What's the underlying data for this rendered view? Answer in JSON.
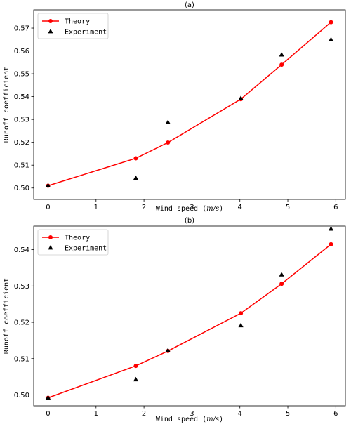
{
  "chart_data": [
    {
      "type": "line",
      "title": "(a)",
      "xlabel": "Wind speed (m/s)",
      "ylabel": "Runoff coefficient",
      "xlim": [
        -0.3,
        6.2
      ],
      "ylim": [
        0.495,
        0.578
      ],
      "xticks": [
        0,
        1,
        2,
        3,
        4,
        5,
        6
      ],
      "yticks": [
        0.5,
        0.51,
        0.52,
        0.53,
        0.54,
        0.55,
        0.56,
        0.57
      ],
      "ytick_labels": [
        "0.50",
        "0.51",
        "0.52",
        "0.53",
        "0.54",
        "0.55",
        "0.56",
        "0.57"
      ],
      "grid": false,
      "legend_position": "top-left",
      "series": [
        {
          "name": "Theory",
          "style": "line-circle",
          "color": "#ff0000",
          "x": [
            0,
            1.83,
            2.5,
            4.02,
            4.87,
            5.9
          ],
          "y": [
            0.501,
            0.513,
            0.5199,
            0.5389,
            0.554,
            0.5726
          ]
        },
        {
          "name": "Experiment",
          "style": "triangle",
          "color": "#000000",
          "x": [
            0,
            1.83,
            2.5,
            4.02,
            4.87,
            5.9
          ],
          "y": [
            0.501,
            0.5043,
            0.5287,
            0.5392,
            0.5583,
            0.5649
          ]
        }
      ]
    },
    {
      "type": "line",
      "title": "(b)",
      "xlabel": "Wind speed (m/s)",
      "ylabel": "Runoff coefficient",
      "xlim": [
        -0.3,
        6.2
      ],
      "ylim": [
        0.497,
        0.5465
      ],
      "xticks": [
        0,
        1,
        2,
        3,
        4,
        5,
        6
      ],
      "yticks": [
        0.5,
        0.51,
        0.52,
        0.53,
        0.54
      ],
      "ytick_labels": [
        "0.50",
        "0.51",
        "0.52",
        "0.53",
        "0.54"
      ],
      "grid": false,
      "legend_position": "top-left",
      "series": [
        {
          "name": "Theory",
          "style": "line-circle",
          "color": "#ff0000",
          "x": [
            0,
            1.83,
            2.5,
            4.02,
            4.87,
            5.9
          ],
          "y": [
            0.4992,
            0.508,
            0.5121,
            0.5225,
            0.5306,
            0.5415
          ]
        },
        {
          "name": "Experiment",
          "style": "triangle",
          "color": "#000000",
          "x": [
            0,
            1.83,
            2.5,
            4.02,
            4.87,
            5.9
          ],
          "y": [
            0.4992,
            0.5042,
            0.5122,
            0.5191,
            0.5331,
            0.5457
          ]
        }
      ]
    }
  ]
}
